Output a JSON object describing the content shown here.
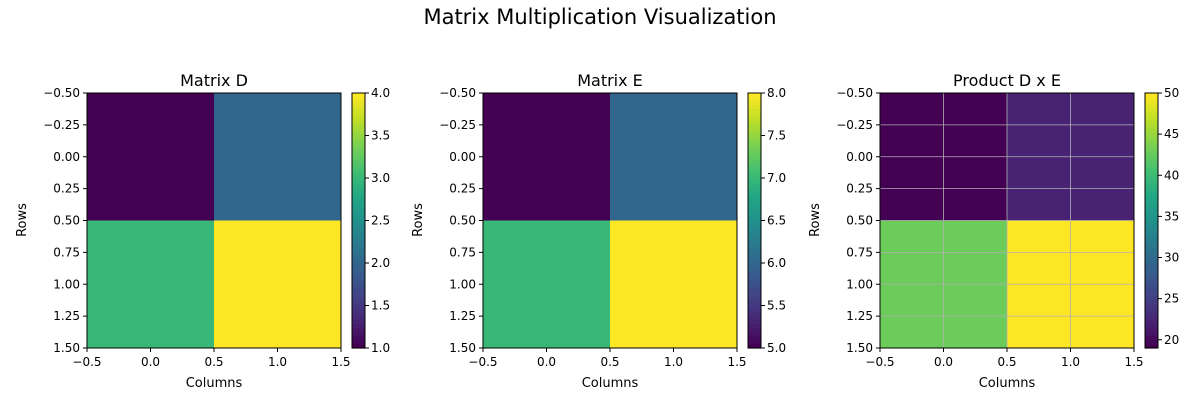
{
  "figure": {
    "title": "Matrix Multiplication Visualization"
  },
  "chart_data": [
    {
      "type": "heatmap",
      "title": "Matrix D",
      "xlabel": "Columns",
      "ylabel": "Rows",
      "matrix": [
        [
          1,
          2
        ],
        [
          3,
          4
        ]
      ],
      "colormap": "viridis",
      "vmin": 1,
      "vmax": 4,
      "xlim": [
        -0.5,
        1.5
      ],
      "ylim": [
        1.5,
        -0.5
      ],
      "xticks": [
        -0.5,
        0.0,
        0.5,
        1.0,
        1.5
      ],
      "xtick_labels": [
        "−0.5",
        "0.0",
        "0.5",
        "1.0",
        "1.5"
      ],
      "yticks": [
        -0.5,
        -0.25,
        0.0,
        0.25,
        0.5,
        0.75,
        1.0,
        1.25,
        1.5
      ],
      "ytick_labels": [
        "−0.50",
        "−0.25",
        "0.00",
        "0.25",
        "0.50",
        "0.75",
        "1.00",
        "1.25",
        "1.50"
      ],
      "colorbar_ticks": [
        1.0,
        1.5,
        2.0,
        2.5,
        3.0,
        3.5,
        4.0
      ],
      "colorbar_tick_labels": [
        "1.0",
        "1.5",
        "2.0",
        "2.5",
        "3.0",
        "3.5",
        "4.0"
      ],
      "grid": false
    },
    {
      "type": "heatmap",
      "title": "Matrix E",
      "xlabel": "Columns",
      "ylabel": "Rows",
      "matrix": [
        [
          5,
          6
        ],
        [
          7,
          8
        ]
      ],
      "colormap": "viridis",
      "vmin": 5,
      "vmax": 8,
      "xlim": [
        -0.5,
        1.5
      ],
      "ylim": [
        1.5,
        -0.5
      ],
      "xticks": [
        -0.5,
        0.0,
        0.5,
        1.0,
        1.5
      ],
      "xtick_labels": [
        "−0.5",
        "0.0",
        "0.5",
        "1.0",
        "1.5"
      ],
      "yticks": [
        -0.5,
        -0.25,
        0.0,
        0.25,
        0.5,
        0.75,
        1.0,
        1.25,
        1.5
      ],
      "ytick_labels": [
        "−0.50",
        "−0.25",
        "0.00",
        "0.25",
        "0.50",
        "0.75",
        "1.00",
        "1.25",
        "1.50"
      ],
      "colorbar_ticks": [
        5.0,
        5.5,
        6.0,
        6.5,
        7.0,
        7.5,
        8.0
      ],
      "colorbar_tick_labels": [
        "5.0",
        "5.5",
        "6.0",
        "6.5",
        "7.0",
        "7.5",
        "8.0"
      ],
      "grid": false
    },
    {
      "type": "heatmap",
      "title": "Product D x E",
      "xlabel": "Columns",
      "ylabel": "Rows",
      "matrix": [
        [
          19,
          22
        ],
        [
          43,
          50
        ]
      ],
      "colormap": "viridis",
      "vmin": 19,
      "vmax": 50,
      "xlim": [
        -0.5,
        1.5
      ],
      "ylim": [
        1.5,
        -0.5
      ],
      "xticks": [
        -0.5,
        0.0,
        0.5,
        1.0,
        1.5
      ],
      "xtick_labels": [
        "−0.5",
        "0.0",
        "0.5",
        "1.0",
        "1.5"
      ],
      "yticks": [
        -0.5,
        -0.25,
        0.0,
        0.25,
        0.5,
        0.75,
        1.0,
        1.25,
        1.5
      ],
      "ytick_labels": [
        "−0.50",
        "−0.25",
        "0.00",
        "0.25",
        "0.50",
        "0.75",
        "1.00",
        "1.25",
        "1.50"
      ],
      "colorbar_ticks": [
        20,
        25,
        30,
        35,
        40,
        45,
        50
      ],
      "colorbar_tick_labels": [
        "20",
        "25",
        "30",
        "35",
        "40",
        "45",
        "50"
      ],
      "grid": true,
      "grid_color": "#b0b0b0"
    }
  ]
}
